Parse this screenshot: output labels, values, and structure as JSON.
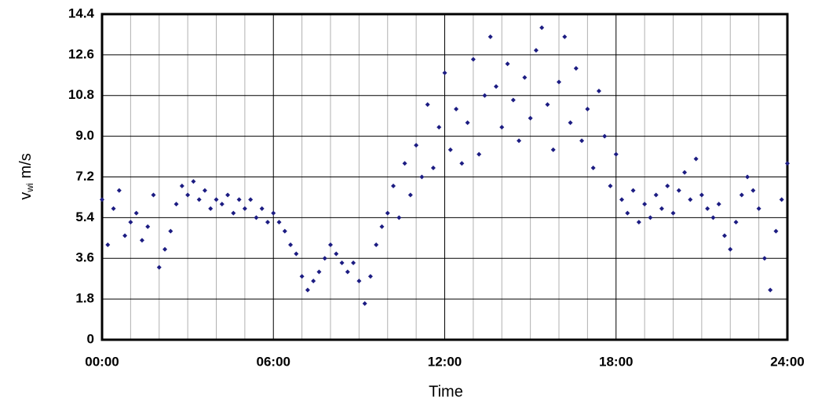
{
  "chart_data": {
    "type": "scatter",
    "xlabel": "Time",
    "ylabel_symbol": "v",
    "ylabel_subscript": "wi",
    "ylabel_unit": "m/s",
    "xlim": [
      0,
      24
    ],
    "xticks": [
      {
        "value": 0,
        "label": "00:00"
      },
      {
        "value": 6,
        "label": "06:00"
      },
      {
        "value": 12,
        "label": "12:00"
      },
      {
        "value": 18,
        "label": "18:00"
      },
      {
        "value": 24,
        "label": "24:00"
      }
    ],
    "xgrid_minor": [
      1,
      2,
      3,
      4,
      5,
      7,
      8,
      9,
      10,
      11,
      13,
      14,
      15,
      16,
      17,
      19,
      20,
      21,
      22,
      23
    ],
    "ylim": [
      0,
      14.4
    ],
    "yticks": [
      0,
      1.8,
      3.6,
      5.4,
      7.2,
      {
        "value": 9,
        "label": "9.0"
      },
      10.8,
      12.6,
      14.4
    ],
    "grid": true,
    "color": "#1c1c82",
    "x": [
      0.0,
      0.2,
      0.4,
      0.6,
      0.8,
      1.0,
      1.2,
      1.4,
      1.6,
      1.8,
      2.0,
      2.2,
      2.4,
      2.6,
      2.8,
      3.0,
      3.2,
      3.4,
      3.6,
      3.8,
      4.0,
      4.2,
      4.4,
      4.6,
      4.8,
      5.0,
      5.2,
      5.4,
      5.6,
      5.8,
      6.0,
      6.2,
      6.4,
      6.6,
      6.8,
      7.0,
      7.2,
      7.4,
      7.6,
      7.8,
      8.0,
      8.2,
      8.4,
      8.6,
      8.8,
      9.0,
      9.2,
      9.4,
      9.6,
      9.8,
      10.0,
      10.2,
      10.4,
      10.6,
      10.8,
      11.0,
      11.2,
      11.4,
      11.6,
      11.8,
      12.0,
      12.2,
      12.4,
      12.6,
      12.8,
      13.0,
      13.2,
      13.4,
      13.6,
      13.8,
      14.0,
      14.2,
      14.4,
      14.6,
      14.8,
      15.0,
      15.2,
      15.4,
      15.6,
      15.8,
      16.0,
      16.2,
      16.4,
      16.6,
      16.8,
      17.0,
      17.2,
      17.4,
      17.6,
      17.8,
      18.0,
      18.2,
      18.4,
      18.6,
      18.8,
      19.0,
      19.2,
      19.4,
      19.6,
      19.8,
      20.0,
      20.2,
      20.4,
      20.6,
      20.8,
      21.0,
      21.2,
      21.4,
      21.6,
      21.8,
      22.0,
      22.2,
      22.4,
      22.6,
      22.8,
      23.0,
      23.2,
      23.4,
      23.6,
      23.8,
      24.0
    ],
    "values": [
      6.2,
      4.2,
      5.8,
      6.6,
      4.6,
      5.2,
      5.6,
      4.4,
      5.0,
      6.4,
      3.2,
      4.0,
      4.8,
      6.0,
      6.8,
      6.4,
      7.0,
      6.2,
      6.6,
      5.8,
      6.2,
      6.0,
      6.4,
      5.6,
      6.2,
      5.8,
      6.2,
      5.4,
      5.8,
      5.2,
      5.6,
      5.2,
      4.8,
      4.2,
      3.8,
      2.8,
      2.2,
      2.6,
      3.0,
      3.6,
      4.2,
      3.8,
      3.4,
      3.0,
      3.4,
      2.6,
      1.6,
      2.8,
      4.2,
      5.0,
      5.6,
      6.8,
      5.4,
      7.8,
      6.4,
      8.6,
      7.2,
      10.4,
      7.6,
      9.4,
      11.8,
      8.4,
      10.2,
      7.8,
      9.6,
      12.4,
      8.2,
      10.8,
      13.4,
      11.2,
      9.4,
      12.2,
      10.6,
      8.8,
      11.6,
      9.8,
      12.8,
      13.8,
      10.4,
      8.4,
      11.4,
      13.4,
      9.6,
      12.0,
      8.8,
      10.2,
      7.6,
      11.0,
      9.0,
      6.8,
      8.2,
      6.2,
      5.6,
      6.6,
      5.2,
      6.0,
      5.4,
      6.4,
      5.8,
      6.8,
      5.6,
      6.6,
      7.4,
      6.2,
      8.0,
      6.4,
      5.8,
      5.4,
      6.0,
      4.6,
      4.0,
      5.2,
      6.4,
      7.2,
      6.6,
      5.8,
      3.6,
      2.2,
      4.8,
      6.2,
      7.8
    ]
  }
}
